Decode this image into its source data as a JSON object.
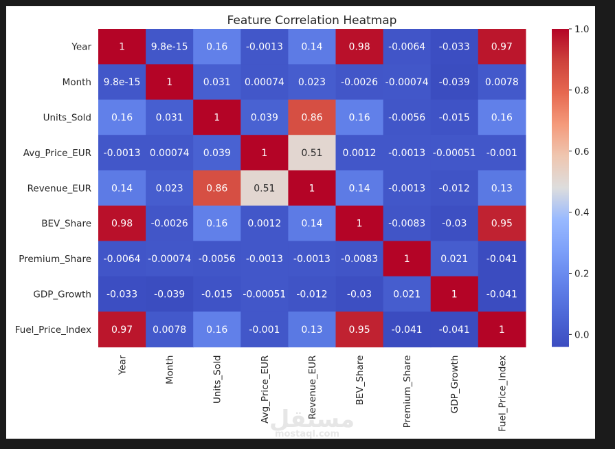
{
  "chart_data": {
    "type": "heatmap",
    "title": "Feature Correlation Heatmap",
    "row_labels": [
      "Year",
      "Month",
      "Units_Sold",
      "Avg_Price_EUR",
      "Revenue_EUR",
      "BEV_Share",
      "Premium_Share",
      "GDP_Growth",
      "Fuel_Price_Index"
    ],
    "col_labels": [
      "Year",
      "Month",
      "Units_Sold",
      "Avg_Price_EUR",
      "Revenue_EUR",
      "BEV_Share",
      "Premium_Share",
      "GDP_Growth",
      "Fuel_Price_Index"
    ],
    "cells": [
      [
        {
          "v": 1,
          "t": "1"
        },
        {
          "v": 9.8e-15,
          "t": "9.8e-15"
        },
        {
          "v": 0.16,
          "t": "0.16"
        },
        {
          "v": -0.0013,
          "t": "-0.0013"
        },
        {
          "v": 0.14,
          "t": "0.14"
        },
        {
          "v": 0.98,
          "t": "0.98"
        },
        {
          "v": -0.0064,
          "t": "-0.0064"
        },
        {
          "v": -0.033,
          "t": "-0.033"
        },
        {
          "v": 0.97,
          "t": "0.97"
        }
      ],
      [
        {
          "v": 9.8e-15,
          "t": "9.8e-15"
        },
        {
          "v": 1,
          "t": "1"
        },
        {
          "v": 0.031,
          "t": "0.031"
        },
        {
          "v": 0.00074,
          "t": "0.00074"
        },
        {
          "v": 0.023,
          "t": "0.023"
        },
        {
          "v": -0.0026,
          "t": "-0.0026"
        },
        {
          "v": -0.00074,
          "t": "-0.00074"
        },
        {
          "v": -0.039,
          "t": "-0.039"
        },
        {
          "v": 0.0078,
          "t": "0.0078"
        }
      ],
      [
        {
          "v": 0.16,
          "t": "0.16"
        },
        {
          "v": 0.031,
          "t": "0.031"
        },
        {
          "v": 1,
          "t": "1"
        },
        {
          "v": 0.039,
          "t": "0.039"
        },
        {
          "v": 0.86,
          "t": "0.86"
        },
        {
          "v": 0.16,
          "t": "0.16"
        },
        {
          "v": -0.0056,
          "t": "-0.0056"
        },
        {
          "v": -0.015,
          "t": "-0.015"
        },
        {
          "v": 0.16,
          "t": "0.16"
        }
      ],
      [
        {
          "v": -0.0013,
          "t": "-0.0013"
        },
        {
          "v": 0.00074,
          "t": "0.00074"
        },
        {
          "v": 0.039,
          "t": "0.039"
        },
        {
          "v": 1,
          "t": "1"
        },
        {
          "v": 0.51,
          "t": "0.51"
        },
        {
          "v": 0.0012,
          "t": "0.0012"
        },
        {
          "v": -0.0013,
          "t": "-0.0013"
        },
        {
          "v": -0.00051,
          "t": "-0.00051"
        },
        {
          "v": -0.001,
          "t": "-0.001"
        }
      ],
      [
        {
          "v": 0.14,
          "t": "0.14"
        },
        {
          "v": 0.023,
          "t": "0.023"
        },
        {
          "v": 0.86,
          "t": "0.86"
        },
        {
          "v": 0.51,
          "t": "0.51"
        },
        {
          "v": 1,
          "t": "1"
        },
        {
          "v": 0.14,
          "t": "0.14"
        },
        {
          "v": -0.0013,
          "t": "-0.0013"
        },
        {
          "v": -0.012,
          "t": "-0.012"
        },
        {
          "v": 0.13,
          "t": "0.13"
        }
      ],
      [
        {
          "v": 0.98,
          "t": "0.98"
        },
        {
          "v": -0.0026,
          "t": "-0.0026"
        },
        {
          "v": 0.16,
          "t": "0.16"
        },
        {
          "v": 0.0012,
          "t": "0.0012"
        },
        {
          "v": 0.14,
          "t": "0.14"
        },
        {
          "v": 1,
          "t": "1"
        },
        {
          "v": -0.0083,
          "t": "-0.0083"
        },
        {
          "v": -0.03,
          "t": "-0.03"
        },
        {
          "v": 0.95,
          "t": "0.95"
        }
      ],
      [
        {
          "v": -0.0064,
          "t": "-0.0064"
        },
        {
          "v": -0.00074,
          "t": "-0.00074"
        },
        {
          "v": -0.0056,
          "t": "-0.0056"
        },
        {
          "v": -0.0013,
          "t": "-0.0013"
        },
        {
          "v": -0.0013,
          "t": "-0.0013"
        },
        {
          "v": -0.0083,
          "t": "-0.0083"
        },
        {
          "v": 1,
          "t": "1"
        },
        {
          "v": 0.021,
          "t": "0.021"
        },
        {
          "v": -0.041,
          "t": "-0.041"
        }
      ],
      [
        {
          "v": -0.033,
          "t": "-0.033"
        },
        {
          "v": -0.039,
          "t": "-0.039"
        },
        {
          "v": -0.015,
          "t": "-0.015"
        },
        {
          "v": -0.00051,
          "t": "-0.00051"
        },
        {
          "v": -0.012,
          "t": "-0.012"
        },
        {
          "v": -0.03,
          "t": "-0.03"
        },
        {
          "v": 0.021,
          "t": "0.021"
        },
        {
          "v": 1,
          "t": "1"
        },
        {
          "v": -0.041,
          "t": "-0.041"
        }
      ],
      [
        {
          "v": 0.97,
          "t": "0.97"
        },
        {
          "v": 0.0078,
          "t": "0.0078"
        },
        {
          "v": 0.16,
          "t": "0.16"
        },
        {
          "v": -0.001,
          "t": "-0.001"
        },
        {
          "v": 0.13,
          "t": "0.13"
        },
        {
          "v": 0.95,
          "t": "0.95"
        },
        {
          "v": -0.041,
          "t": "-0.041"
        },
        {
          "v": -0.041,
          "t": "-0.041"
        },
        {
          "v": 1,
          "t": "1"
        }
      ]
    ],
    "colormap": "coolwarm",
    "vmin": -0.041,
    "vmax": 1.0,
    "colorbar_ticks": [
      "0.0",
      "0.2",
      "0.4",
      "0.6",
      "0.8",
      "1.0"
    ]
  },
  "watermark": {
    "logo_text": "مستقل",
    "domain_text": "mostaql.com"
  }
}
